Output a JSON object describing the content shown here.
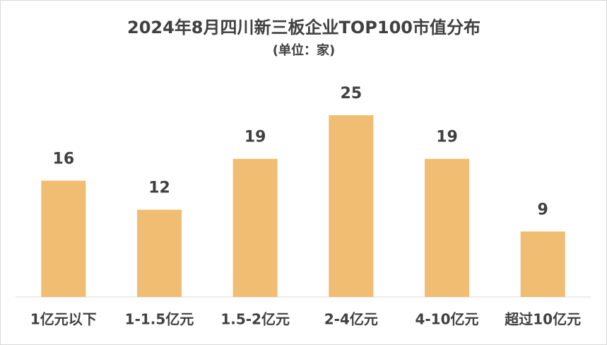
{
  "chart_data": {
    "type": "bar",
    "title": "2024年8月四川新三板企业TOP100市值分布",
    "subtitle": "(单位：家)",
    "categories": [
      "1亿元以下",
      "1-1.5亿元",
      "1.5-2亿元",
      "2-4亿元",
      "4-10亿元",
      "超过10亿元"
    ],
    "values": [
      16,
      12,
      19,
      25,
      19,
      9
    ],
    "color": "#f0bd72"
  }
}
